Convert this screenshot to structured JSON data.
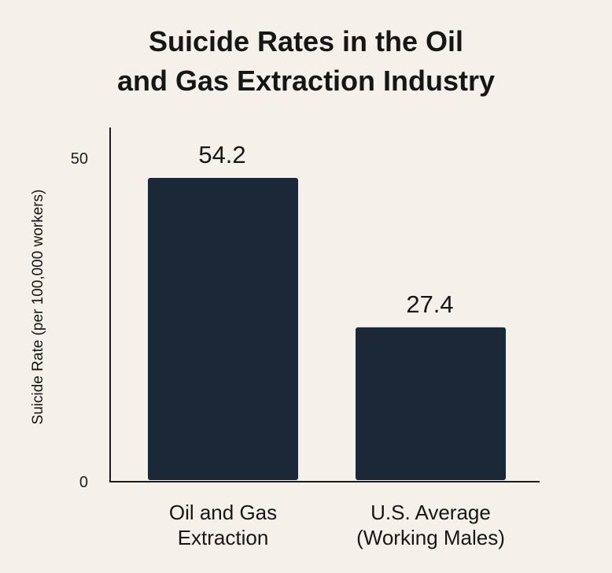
{
  "chart_data": {
    "type": "bar",
    "title_lines": [
      "Suicide Rates in the Oil",
      "and Gas Extraction Industry"
    ],
    "ylabel": "Suicide Rate (per 100,000 workers)",
    "xlabel": "",
    "categories": [
      [
        "Oil and Gas",
        "Extraction"
      ],
      [
        "U.S. Average",
        "(Working Males)"
      ]
    ],
    "values": [
      54.2,
      27.4
    ],
    "value_labels": [
      "54.2",
      "27.4"
    ],
    "yticks": [
      0,
      50
    ],
    "ytick_labels": [
      "0",
      "50"
    ],
    "ylim": [
      0,
      54.2
    ],
    "grid": false,
    "bar_color": "#1b2838",
    "axis_color": "#1b1b1b",
    "background": "#f5f1ea"
  }
}
